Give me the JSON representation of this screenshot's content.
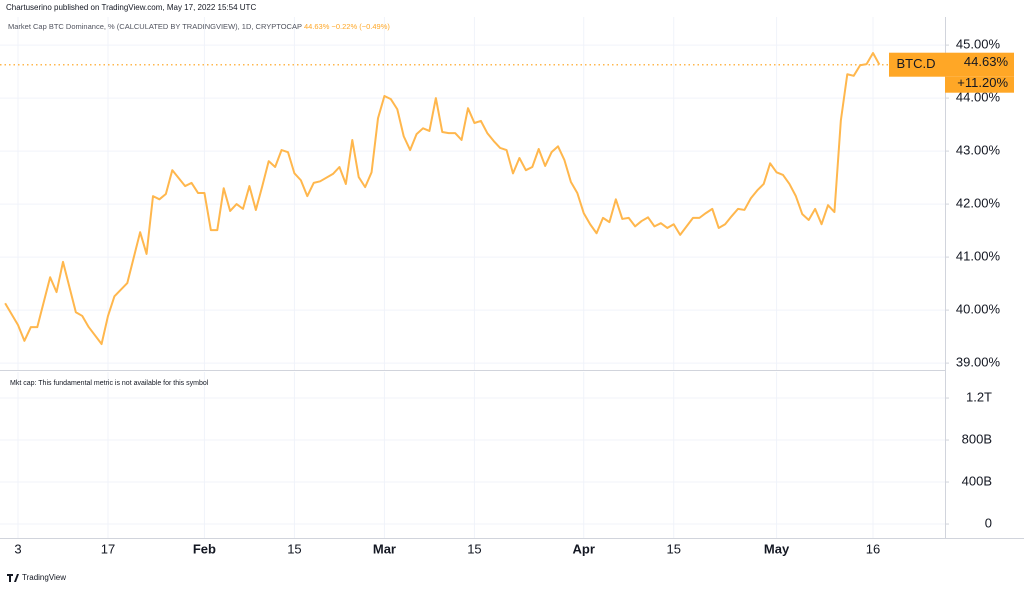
{
  "header": "Chartuserino published on TradingView.com, May 17, 2022 15:54 UTC",
  "footer": "TradingView",
  "chart_data": [
    {
      "type": "line",
      "title": "Market Cap BTC Dominance, % (CALCULATED BY TRADINGVIEW), 1D, CRYPTOCAP",
      "legend_values": [
        "44.63%",
        "−0.22%",
        "(−0.49%)"
      ],
      "x": [
        1,
        3,
        4,
        5,
        6,
        8,
        9,
        10,
        12,
        13,
        14,
        16,
        17,
        18,
        20,
        22,
        23,
        24,
        25,
        26,
        27,
        29,
        30,
        31,
        32,
        33,
        34,
        35,
        36,
        37,
        38,
        39,
        40,
        41,
        42,
        43,
        44,
        45,
        46,
        47,
        48,
        49,
        50,
        52,
        53,
        54,
        55,
        56,
        57,
        58,
        59,
        60,
        61,
        62,
        63,
        64,
        65,
        66,
        67,
        68,
        69,
        70,
        71,
        72,
        73,
        74,
        75,
        76,
        77,
        78,
        79,
        80,
        81,
        82,
        83,
        84,
        85,
        86,
        87,
        88,
        89,
        90,
        91,
        92,
        93,
        94,
        95,
        96,
        97,
        98,
        99,
        100,
        101,
        102,
        103,
        104,
        105,
        106,
        107,
        108,
        109,
        110,
        111,
        112,
        113,
        114,
        115,
        116,
        117,
        118,
        119,
        120,
        121,
        122,
        123,
        124,
        125,
        126,
        127,
        128,
        129,
        130,
        131,
        132,
        133,
        134,
        135,
        136,
        137
      ],
      "series": [
        {
          "name": "BTC.D",
          "color": "#ffb74d",
          "values": [
            40.13,
            39.72,
            39.42,
            39.68,
            39.68,
            40.62,
            40.34,
            40.91,
            39.96,
            39.89,
            39.68,
            39.36,
            39.89,
            40.26,
            40.51,
            41.47,
            41.06,
            42.15,
            42.09,
            42.19,
            42.64,
            42.34,
            42.4,
            42.21,
            42.21,
            41.51,
            41.51,
            42.3,
            41.87,
            42.0,
            41.91,
            42.34,
            41.89,
            42.34,
            42.81,
            42.7,
            43.02,
            42.98,
            42.58,
            42.45,
            42.15,
            42.4,
            42.43,
            42.57,
            42.7,
            42.38,
            43.21,
            42.51,
            42.32,
            42.6,
            43.62,
            44.04,
            43.98,
            43.79,
            43.28,
            43.02,
            43.32,
            43.43,
            43.38,
            44.0,
            43.36,
            43.34,
            43.34,
            43.21,
            43.81,
            43.53,
            43.57,
            43.34,
            43.19,
            43.06,
            43.02,
            42.58,
            42.87,
            42.64,
            42.7,
            43.04,
            42.72,
            42.98,
            43.09,
            42.83,
            42.42,
            42.21,
            41.83,
            41.62,
            41.45,
            41.74,
            41.66,
            42.09,
            41.72,
            41.74,
            41.58,
            41.68,
            41.75,
            41.58,
            41.64,
            41.55,
            41.62,
            41.42,
            41.58,
            41.74,
            41.74,
            41.83,
            41.91,
            41.55,
            41.62,
            41.77,
            41.91,
            41.89,
            42.11,
            42.26,
            42.38,
            42.77,
            42.6,
            42.55,
            42.38,
            42.15,
            41.81,
            41.7,
            41.91,
            41.62,
            41.98,
            41.85,
            43.58,
            44.45,
            44.42,
            44.62,
            44.64,
            44.85,
            44.63
          ],
          "last_label": "44.63%",
          "change_label": "+11.20%"
        }
      ],
      "xlim": [
        0.2,
        147.2
      ],
      "xticks": [
        {
          "value": 3,
          "label": "3"
        },
        {
          "value": 17,
          "label": "17"
        },
        {
          "value": 32,
          "label": "Feb"
        },
        {
          "value": 46,
          "label": "15"
        },
        {
          "value": 60,
          "label": "Mar"
        },
        {
          "value": 74,
          "label": "15"
        },
        {
          "value": 91,
          "label": "Apr"
        },
        {
          "value": 105,
          "label": "15"
        },
        {
          "value": 121,
          "label": "May"
        },
        {
          "value": 136,
          "label": "16"
        }
      ],
      "ylim": [
        38.87,
        45.53
      ],
      "yticks": [
        {
          "value": 39,
          "label": "39.00%"
        },
        {
          "value": 40,
          "label": "40.00%"
        },
        {
          "value": 41,
          "label": "41.00%"
        },
        {
          "value": 42,
          "label": "42.00%"
        },
        {
          "value": 43,
          "label": "43.00%"
        },
        {
          "value": 44,
          "label": "44.00%"
        },
        {
          "value": 45,
          "label": "45.00%"
        }
      ],
      "grid": true
    },
    {
      "type": "line",
      "subtitle": "Mkt cap: This fundamental metric is not available for this symbol",
      "series": [],
      "ylim": [
        -133000000000,
        1448000000000
      ],
      "yticks": [
        0,
        {
          "value": 400000000000,
          "label": "400B"
        },
        {
          "value": 800000000000,
          "label": "800B"
        },
        {
          "value": 1200000000000,
          "label": "1.2T"
        }
      ],
      "grid": true
    }
  ]
}
